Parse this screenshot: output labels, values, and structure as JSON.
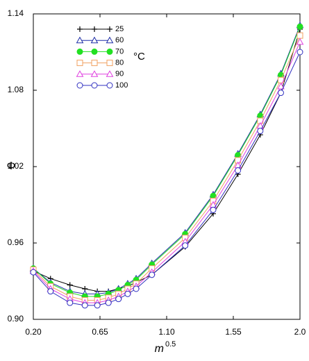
{
  "chart_data": {
    "type": "line",
    "ylabel": "Φ",
    "xlabel": "m",
    "xlabel_exponent": "0.5",
    "legend_title": "°C",
    "x": [
      0.2,
      0.316,
      0.447,
      0.548,
      0.632,
      0.707,
      0.775,
      0.837,
      0.894,
      1.0,
      1.225,
      1.414,
      1.581,
      1.732,
      1.871,
      2.0
    ],
    "series": [
      {
        "name": "25",
        "color": "#000000",
        "marker": "plus",
        "values": [
          0.938,
          0.932,
          0.927,
          0.924,
          0.922,
          0.922,
          0.924,
          0.926,
          0.929,
          0.935,
          0.957,
          0.983,
          1.014,
          1.045,
          1.078,
          1.128
        ]
      },
      {
        "name": "60",
        "color": "#1f2fa8",
        "marker": "triangle",
        "values": [
          0.94,
          0.929,
          0.922,
          0.92,
          0.92,
          0.921,
          0.924,
          0.928,
          0.932,
          0.944,
          0.968,
          0.998,
          1.03,
          1.061,
          1.093,
          1.131
        ]
      },
      {
        "name": "70",
        "color": "#22e022",
        "marker": "dot",
        "values": [
          0.94,
          0.928,
          0.921,
          0.918,
          0.918,
          0.92,
          0.923,
          0.927,
          0.931,
          0.943,
          0.967,
          0.997,
          1.029,
          1.06,
          1.092,
          1.13
        ]
      },
      {
        "name": "80",
        "color": "#f0a060",
        "marker": "square",
        "values": [
          0.939,
          0.926,
          0.918,
          0.915,
          0.915,
          0.917,
          0.92,
          0.924,
          0.928,
          0.94,
          0.964,
          0.993,
          1.025,
          1.056,
          1.088,
          1.123
        ]
      },
      {
        "name": "90",
        "color": "#e040e0",
        "marker": "triangle",
        "values": [
          0.938,
          0.924,
          0.916,
          0.913,
          0.913,
          0.915,
          0.918,
          0.922,
          0.926,
          0.937,
          0.961,
          0.99,
          1.021,
          1.052,
          1.083,
          1.118
        ]
      },
      {
        "name": "100",
        "color": "#3030c0",
        "marker": "circle",
        "values": [
          0.937,
          0.922,
          0.913,
          0.911,
          0.911,
          0.913,
          0.916,
          0.92,
          0.924,
          0.935,
          0.958,
          0.986,
          1.017,
          1.048,
          1.078,
          1.11
        ]
      }
    ],
    "xlim": [
      0.2,
      2.0
    ],
    "xticks": [
      {
        "value": 0.2,
        "label": "0.20"
      },
      0.65,
      {
        "value": 1.1,
        "label": "1.10"
      },
      1.55,
      {
        "value": 2.0,
        "label": "2.0"
      }
    ],
    "ylim": [
      0.9,
      1.14
    ],
    "yticks": [
      {
        "value": 0.9,
        "label": "0.90"
      },
      0.96,
      1.02,
      1.08,
      1.14
    ],
    "grid": false
  }
}
